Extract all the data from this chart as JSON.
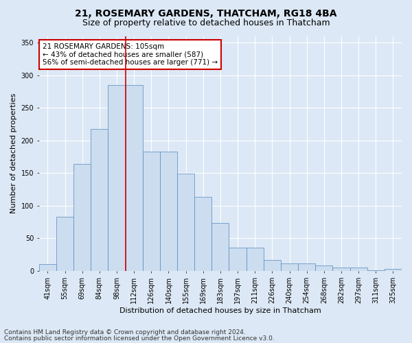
{
  "title": "21, ROSEMARY GARDENS, THATCHAM, RG18 4BA",
  "subtitle": "Size of property relative to detached houses in Thatcham",
  "xlabel": "Distribution of detached houses by size in Thatcham",
  "ylabel": "Number of detached properties",
  "categories": [
    "41sqm",
    "55sqm",
    "69sqm",
    "84sqm",
    "98sqm",
    "112sqm",
    "126sqm",
    "140sqm",
    "155sqm",
    "169sqm",
    "183sqm",
    "197sqm",
    "211sqm",
    "226sqm",
    "240sqm",
    "254sqm",
    "268sqm",
    "282sqm",
    "297sqm",
    "311sqm",
    "325sqm"
  ],
  "values": [
    10,
    83,
    164,
    218,
    285,
    285,
    183,
    183,
    149,
    113,
    73,
    36,
    36,
    17,
    12,
    11,
    8,
    5,
    5,
    1,
    3
  ],
  "bar_color": "#ccddf0",
  "bar_edge_color": "#5588bb",
  "marker_line_color": "#cc0000",
  "annotation_text": "21 ROSEMARY GARDENS: 105sqm\n← 43% of detached houses are smaller (587)\n56% of semi-detached houses are larger (771) →",
  "annotation_box_color": "#ffffff",
  "annotation_box_edge_color": "#cc0000",
  "ylim": [
    0,
    360
  ],
  "yticks": [
    0,
    50,
    100,
    150,
    200,
    250,
    300,
    350
  ],
  "footer_line1": "Contains HM Land Registry data © Crown copyright and database right 2024.",
  "footer_line2": "Contains public sector information licensed under the Open Government Licence v3.0.",
  "background_color": "#dce8f5",
  "plot_bg_color": "#dce8f5",
  "grid_color": "#ffffff",
  "title_fontsize": 10,
  "subtitle_fontsize": 9,
  "axis_label_fontsize": 8,
  "tick_fontsize": 7,
  "annotation_fontsize": 7.5,
  "footer_fontsize": 6.5
}
